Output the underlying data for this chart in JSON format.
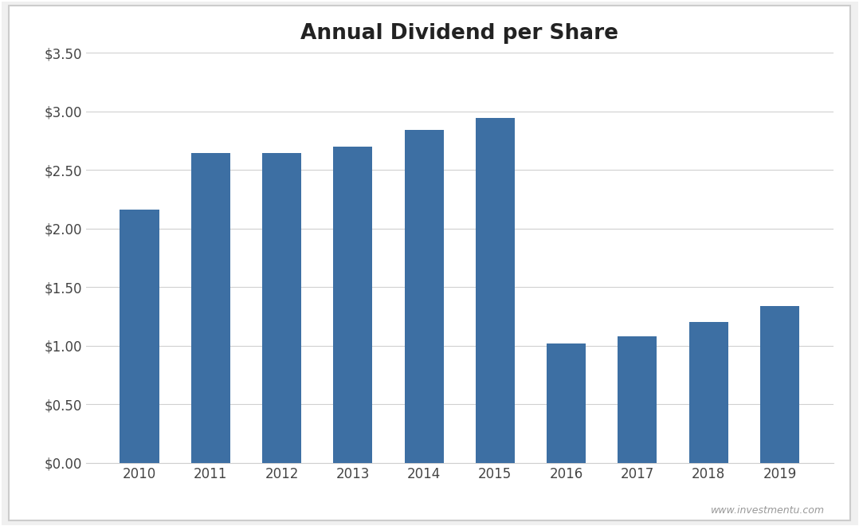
{
  "title": "Annual Dividend per Share",
  "categories": [
    "2010",
    "2011",
    "2012",
    "2013",
    "2014",
    "2015",
    "2016",
    "2017",
    "2018",
    "2019"
  ],
  "values": [
    2.16,
    2.64,
    2.64,
    2.7,
    2.84,
    2.94,
    1.02,
    1.08,
    1.2,
    1.34
  ],
  "bar_color": "#3D6FA3",
  "ylim": [
    0,
    3.5
  ],
  "yticks": [
    0.0,
    0.5,
    1.0,
    1.5,
    2.0,
    2.5,
    3.0,
    3.5
  ],
  "background_color": "#f0f0f0",
  "chart_background": "#ffffff",
  "grid_color": "#d0d0d0",
  "title_fontsize": 19,
  "tick_fontsize": 12,
  "watermark": "www.investmentu.com",
  "border_color": "#cccccc"
}
